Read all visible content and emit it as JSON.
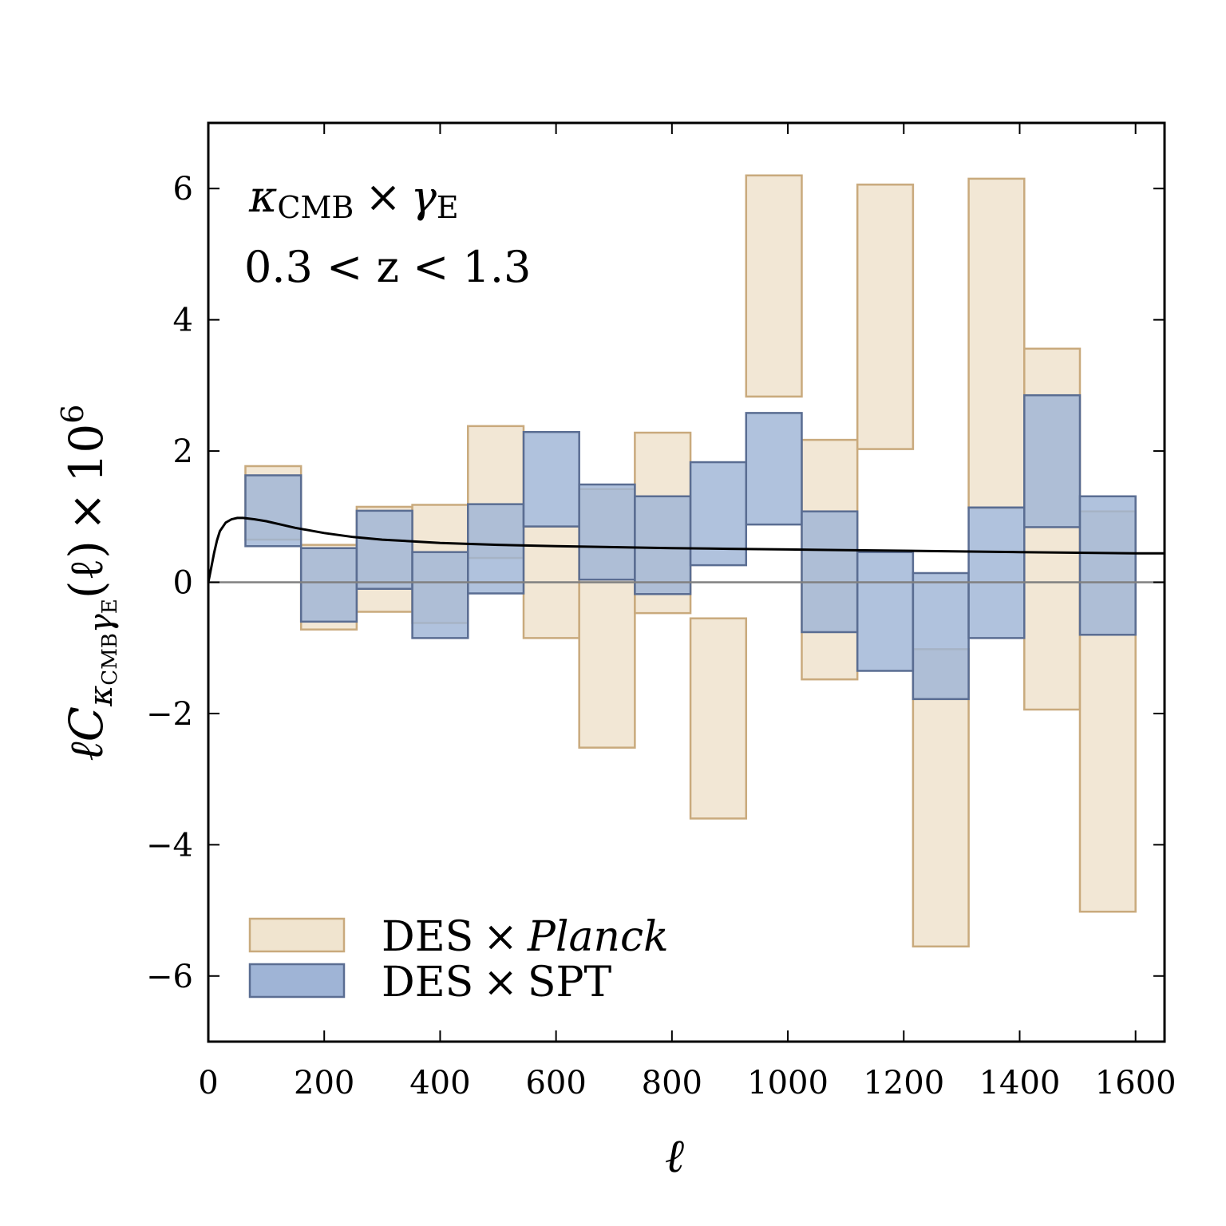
{
  "chart_data": {
    "type": "bar",
    "subtype": "error-box",
    "xlabel": "ℓ",
    "ylabel": {
      "prefix": "ℓ",
      "main": "C",
      "sub_kappa": "κ",
      "sub_cmb": "CMB",
      "sub_gamma": "γ",
      "sub_e": "E",
      "arg": "(ℓ)",
      "times": "×",
      "ten": "10",
      "exp": "6"
    },
    "annotations": {
      "line1": {
        "kappa": "κ",
        "cmb": "CMB",
        "times": "×",
        "gamma": "γ",
        "e": "E"
      },
      "line2": "0.3 < z < 1.3"
    },
    "xlim": [
      0,
      1650
    ],
    "ylim": [
      -7,
      7
    ],
    "xticks": [
      0,
      200,
      400,
      600,
      800,
      1000,
      1200,
      1400,
      1600
    ],
    "yticks": [
      -6,
      -4,
      -2,
      0,
      2,
      4,
      6
    ],
    "grid": false,
    "legend_position": "lower-left",
    "bin_edges": [
      0,
      160,
      256,
      352,
      448,
      544,
      640,
      736,
      832,
      928,
      1024,
      1120,
      1216,
      1312,
      1408,
      1504,
      1600
    ],
    "series": [
      {
        "name": "DES × Planck",
        "legend": {
          "prefix": "DES",
          "times": "×",
          "name": "Planck",
          "italic": true
        },
        "fill": "#f0e4cf",
        "edge": "#c9aa7d",
        "boxes": [
          {
            "x0": 64,
            "x1": 160,
            "lo": 0.65,
            "hi": 1.77
          },
          {
            "x0": 160,
            "x1": 256,
            "lo": -0.72,
            "hi": 0.57
          },
          {
            "x0": 256,
            "x1": 352,
            "lo": -0.45,
            "hi": 1.15
          },
          {
            "x0": 352,
            "x1": 448,
            "lo": -0.62,
            "hi": 1.18
          },
          {
            "x0": 448,
            "x1": 544,
            "lo": 0.37,
            "hi": 2.38
          },
          {
            "x0": 544,
            "x1": 640,
            "lo": -0.85,
            "hi": 0.85
          },
          {
            "x0": 640,
            "x1": 736,
            "lo": -2.52,
            "hi": 1.42
          },
          {
            "x0": 736,
            "x1": 832,
            "lo": -0.47,
            "hi": 2.28
          },
          {
            "x0": 832,
            "x1": 928,
            "lo": -3.6,
            "hi": -0.55
          },
          {
            "x0": 928,
            "x1": 1024,
            "lo": 2.83,
            "hi": 6.2
          },
          {
            "x0": 1024,
            "x1": 1120,
            "lo": -1.48,
            "hi": 2.17
          },
          {
            "x0": 1120,
            "x1": 1216,
            "lo": 2.03,
            "hi": 6.06
          },
          {
            "x0": 1216,
            "x1": 1312,
            "lo": -5.55,
            "hi": -1.02
          },
          {
            "x0": 1312,
            "x1": 1408,
            "lo": 1.13,
            "hi": 6.15
          },
          {
            "x0": 1408,
            "x1": 1504,
            "lo": -1.94,
            "hi": 3.56
          },
          {
            "x0": 1504,
            "x1": 1600,
            "lo": -5.02,
            "hi": 1.08
          }
        ]
      },
      {
        "name": "DES × SPT",
        "legend": {
          "prefix": "DES",
          "times": "×",
          "name": "SPT",
          "italic": false
        },
        "fill": "#9fb4d6",
        "edge": "#5a6d92",
        "boxes": [
          {
            "x0": 64,
            "x1": 160,
            "lo": 0.55,
            "hi": 1.63
          },
          {
            "x0": 160,
            "x1": 256,
            "lo": -0.6,
            "hi": 0.52
          },
          {
            "x0": 256,
            "x1": 352,
            "lo": -0.1,
            "hi": 1.09
          },
          {
            "x0": 352,
            "x1": 448,
            "lo": -0.85,
            "hi": 0.46
          },
          {
            "x0": 448,
            "x1": 544,
            "lo": -0.17,
            "hi": 1.19
          },
          {
            "x0": 544,
            "x1": 640,
            "lo": 0.85,
            "hi": 2.29
          },
          {
            "x0": 640,
            "x1": 736,
            "lo": 0.04,
            "hi": 1.49
          },
          {
            "x0": 736,
            "x1": 832,
            "lo": -0.18,
            "hi": 1.31
          },
          {
            "x0": 832,
            "x1": 928,
            "lo": 0.26,
            "hi": 1.83
          },
          {
            "x0": 928,
            "x1": 1024,
            "lo": 0.88,
            "hi": 2.58
          },
          {
            "x0": 1024,
            "x1": 1120,
            "lo": -0.76,
            "hi": 1.08
          },
          {
            "x0": 1120,
            "x1": 1216,
            "lo": -1.35,
            "hi": 0.46
          },
          {
            "x0": 1216,
            "x1": 1312,
            "lo": -1.78,
            "hi": 0.14
          },
          {
            "x0": 1312,
            "x1": 1408,
            "lo": -0.85,
            "hi": 1.14
          },
          {
            "x0": 1408,
            "x1": 1504,
            "lo": 0.84,
            "hi": 2.85
          },
          {
            "x0": 1504,
            "x1": 1600,
            "lo": -0.8,
            "hi": 1.31
          }
        ]
      }
    ],
    "theory_curve": {
      "color": "#000000",
      "x": [
        0,
        5,
        10,
        15,
        20,
        30,
        40,
        50,
        60,
        70,
        80,
        100,
        120,
        150,
        200,
        250,
        300,
        400,
        500,
        600,
        700,
        800,
        900,
        1000,
        1100,
        1200,
        1300,
        1400,
        1500,
        1600,
        1650
      ],
      "y": [
        0,
        0.22,
        0.45,
        0.64,
        0.78,
        0.91,
        0.96,
        0.98,
        0.98,
        0.97,
        0.96,
        0.93,
        0.89,
        0.83,
        0.75,
        0.69,
        0.65,
        0.6,
        0.57,
        0.55,
        0.535,
        0.52,
        0.51,
        0.5,
        0.49,
        0.48,
        0.47,
        0.46,
        0.45,
        0.44,
        0.44
      ]
    },
    "zero_line_color": "#808080"
  }
}
